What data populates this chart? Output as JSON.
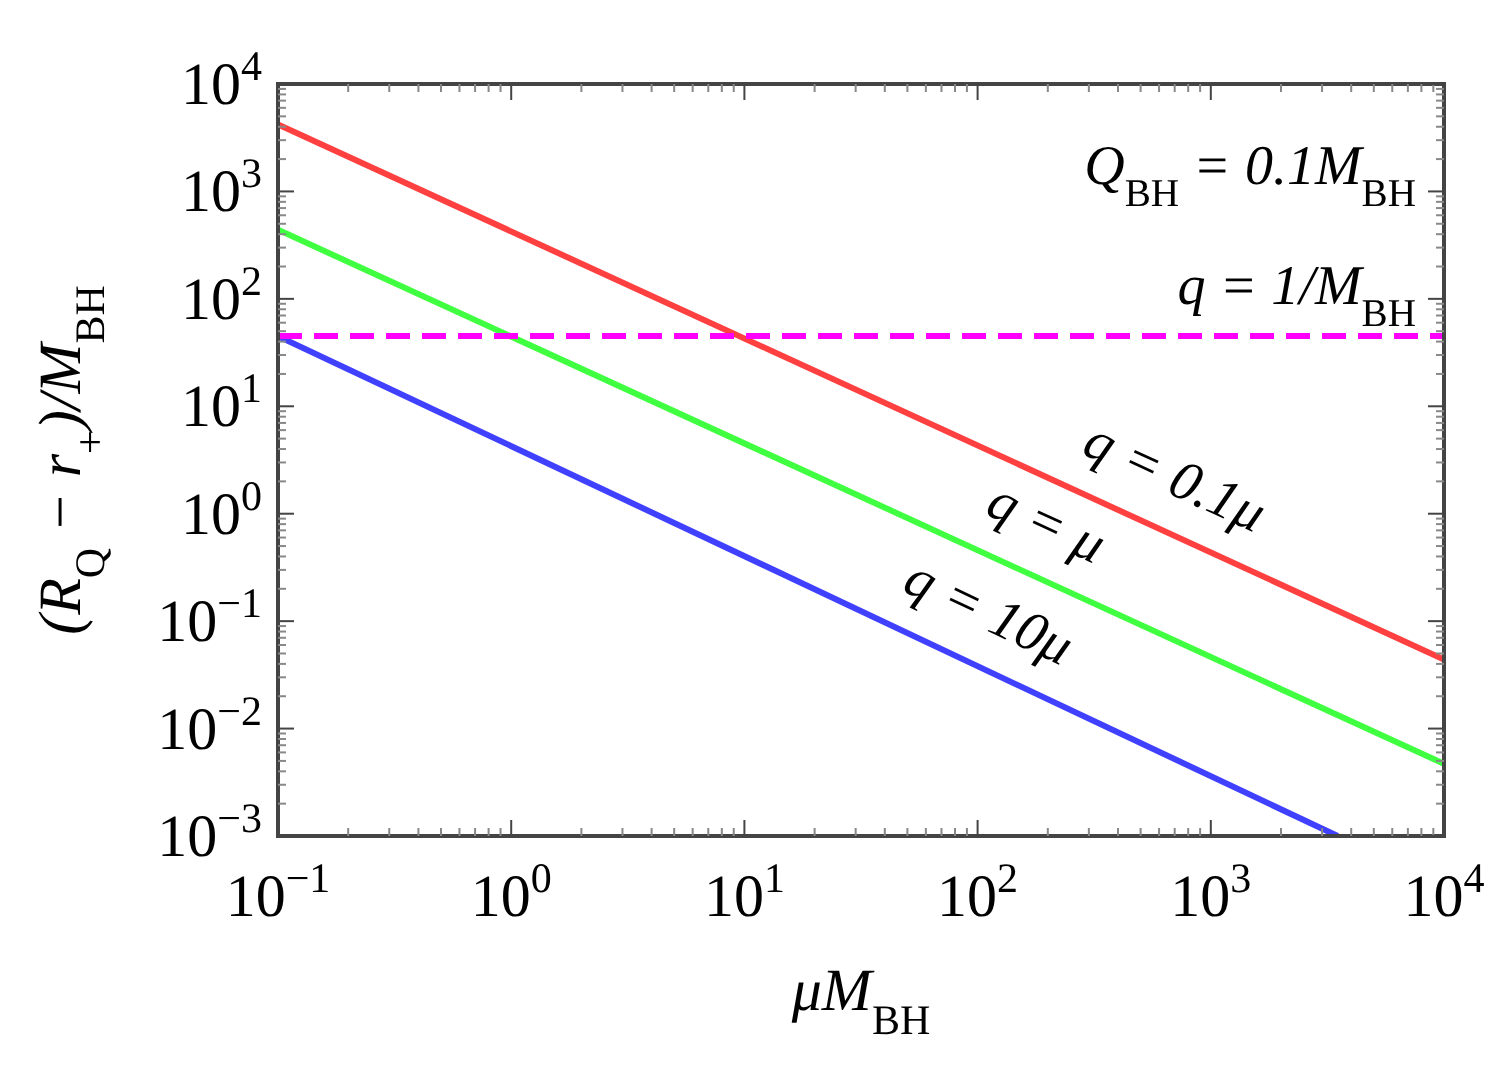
{
  "chart_data": {
    "type": "line",
    "xlabel": "μM$_{BH}$",
    "ylabel": "(R$_{Q}$ − r$_{+}$)/M$_{BH}$",
    "log": "xy",
    "grid": false,
    "line_style": "solid",
    "xlim": [
      0.1,
      10000
    ],
    "ylim": [
      0.001,
      10000
    ],
    "xticks": [
      {
        "value": 0.1,
        "label": "10$^{−1}$"
      },
      {
        "value": 1,
        "label": "10$^{0}$"
      },
      {
        "value": 10,
        "label": "10$^{1}$"
      },
      {
        "value": 100,
        "label": "10$^{2}$"
      },
      {
        "value": 1000,
        "label": "10$^{3}$"
      },
      {
        "value": 10000,
        "label": "10$^{4}$"
      }
    ],
    "yticks": [
      {
        "value": 0.001,
        "label": "10$^{−3}$"
      },
      {
        "value": 0.01,
        "label": "10$^{−2}$"
      },
      {
        "value": 0.1,
        "label": "10$^{−1}$"
      },
      {
        "value": 1,
        "label": "10$^{0}$"
      },
      {
        "value": 10,
        "label": "10$^{1}$"
      },
      {
        "value": 100,
        "label": "10$^{2}$"
      },
      {
        "value": 1000,
        "label": "10$^{3}$"
      },
      {
        "value": 10000,
        "label": "10$^{4}$"
      }
    ],
    "series": [
      {
        "name": "q = 0.1μ",
        "color": "#ff4040",
        "x": [
          0.1,
          10000
        ],
        "values": [
          4200,
          0.044
        ]
      },
      {
        "name": "q = μ",
        "color": "#40ff40",
        "x": [
          0.1,
          10000
        ],
        "values": [
          440,
          0.0047
        ]
      },
      {
        "name": "q = 10μ",
        "color": "#4040ff",
        "x": [
          0.1,
          3500
        ],
        "values": [
          45,
          0.001
        ]
      },
      {
        "name": "q = 1/M$_{BH}$",
        "color": "#ff00ff",
        "line_style": "dashed",
        "x": [
          0.1,
          10000
        ],
        "values": [
          45,
          45
        ]
      }
    ],
    "annotations": [
      "Q$_{BH}$ = 0.1M$_{BH}$"
    ]
  }
}
